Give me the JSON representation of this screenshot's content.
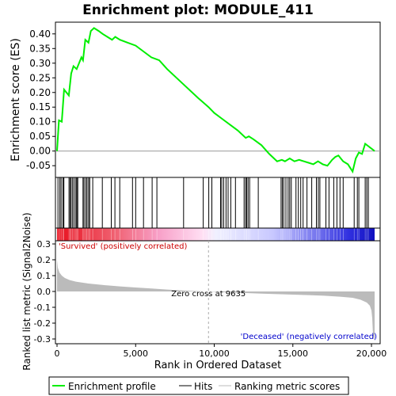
{
  "chart_data": {
    "type": "line",
    "title": "Enrichment plot: MODULE_411",
    "es_panel": {
      "ylabel": "Enrichment score (ES)",
      "ylim": [
        -0.09,
        0.44
      ],
      "yticks": [
        -0.05,
        0.0,
        0.05,
        0.1,
        0.15,
        0.2,
        0.25,
        0.3,
        0.35,
        0.4
      ],
      "ytick_labels": [
        "-0.05",
        "0.00",
        "0.05",
        "0.10",
        "0.15",
        "0.20",
        "0.25",
        "0.30",
        "0.35",
        "0.40"
      ],
      "x": [
        0,
        120,
        300,
        450,
        750,
        900,
        1050,
        1250,
        1550,
        1650,
        1800,
        2000,
        2150,
        2350,
        2650,
        2900,
        3200,
        3500,
        3700,
        4000,
        4500,
        5000,
        5500,
        6000,
        6500,
        7000,
        8000,
        9000,
        9635,
        10000,
        10500,
        11000,
        11500,
        12000,
        12200,
        12500,
        13000,
        13500,
        14000,
        14300,
        14500,
        14800,
        15100,
        15400,
        15700,
        16000,
        16300,
        16600,
        16900,
        17200,
        17500,
        17700,
        17900,
        18200,
        18500,
        18800,
        19000,
        19200,
        19400,
        19600,
        20200
      ],
      "y": [
        0.0,
        0.105,
        0.1,
        0.21,
        0.19,
        0.265,
        0.29,
        0.28,
        0.32,
        0.31,
        0.38,
        0.37,
        0.41,
        0.42,
        0.41,
        0.4,
        0.39,
        0.38,
        0.39,
        0.38,
        0.37,
        0.36,
        0.34,
        0.32,
        0.31,
        0.28,
        0.23,
        0.18,
        0.15,
        0.13,
        0.11,
        0.09,
        0.07,
        0.045,
        0.05,
        0.04,
        0.02,
        -0.01,
        -0.035,
        -0.03,
        -0.035,
        -0.025,
        -0.035,
        -0.03,
        -0.035,
        -0.04,
        -0.045,
        -0.035,
        -0.045,
        -0.05,
        -0.03,
        -0.02,
        -0.015,
        -0.035,
        -0.045,
        -0.07,
        -0.025,
        -0.005,
        -0.01,
        0.025,
        0.0
      ]
    },
    "hits": [
      60,
      180,
      260,
      380,
      440,
      760,
      830,
      900,
      990,
      1090,
      1200,
      1260,
      1320,
      1650,
      1720,
      1830,
      1910,
      2010,
      2080,
      2270,
      2880,
      3450,
      3680,
      3990,
      4800,
      5000,
      5500,
      6050,
      6350,
      8050,
      9300,
      9650,
      9850,
      10400,
      10480,
      10600,
      10750,
      10880,
      11050,
      11350,
      11900,
      12000,
      12060,
      12150,
      12250,
      12800,
      14250,
      14330,
      14420,
      14560,
      14700,
      14800,
      14900,
      15200,
      15350,
      15500,
      15650,
      15900,
      16200,
      16500,
      16620,
      16720,
      17100,
      17300,
      17600,
      17800,
      18000,
      18200,
      18900,
      19100,
      19200,
      19600,
      19700,
      19800
    ],
    "metric_panel": {
      "ylabel": "Ranked list metric (Signal2Noise)",
      "ylim": [
        -0.33,
        0.32
      ],
      "yticks": [
        -0.3,
        -0.2,
        -0.1,
        0.0,
        0.1,
        0.2,
        0.3
      ],
      "ytick_labels": [
        "-0.3",
        "-0.2",
        "-0.1",
        "0.0",
        "0.1",
        "0.2",
        "0.3"
      ],
      "x": [
        0,
        50,
        150,
        300,
        500,
        800,
        1200,
        2000,
        3000,
        4000,
        5000,
        6000,
        7000,
        8000,
        9000,
        9635,
        10000,
        11000,
        12000,
        13000,
        14000,
        15000,
        16000,
        17000,
        18000,
        18800,
        19300,
        19700,
        19900,
        20000,
        20050,
        20100,
        20200
      ],
      "y": [
        0.2,
        0.15,
        0.12,
        0.1,
        0.085,
        0.072,
        0.062,
        0.05,
        0.04,
        0.032,
        0.025,
        0.019,
        0.012,
        0.006,
        0.002,
        0.0,
        -0.002,
        -0.006,
        -0.01,
        -0.014,
        -0.017,
        -0.02,
        -0.023,
        -0.027,
        -0.033,
        -0.04,
        -0.052,
        -0.07,
        -0.09,
        -0.12,
        -0.17,
        -0.28,
        -0.31
      ]
    },
    "zero_cross_label": "Zero cross at 9635",
    "zero_cross": 9635,
    "pos_label": "'Survived' (positively correlated)",
    "neg_label": "'Deceased' (negatively correlated)",
    "xlabel": "Rank in Ordered Dataset",
    "xlim": [
      0,
      21000
    ],
    "xticks": [
      0,
      5000,
      10000,
      15000,
      20000
    ],
    "xtick_labels": [
      "0",
      "5,000",
      "10,000",
      "15,000",
      "20,000"
    ],
    "legend": {
      "placement": "bottom",
      "entries": [
        "Enrichment profile",
        "Hits",
        "Ranking metric scores"
      ]
    },
    "colors": {
      "profile": "#00ee00",
      "hits": "#000000",
      "metric": "#bbbbbb",
      "pos_text": "#cc0000",
      "neg_text": "#0000cc"
    }
  }
}
